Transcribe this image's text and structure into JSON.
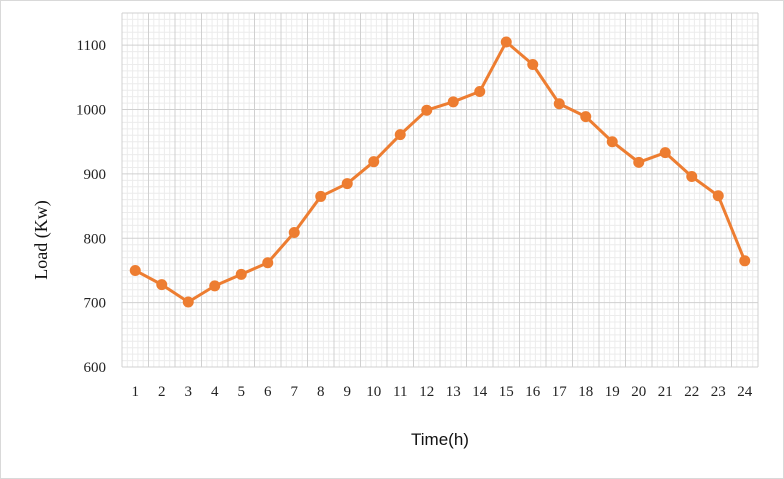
{
  "chart_data": {
    "type": "line",
    "xlabel": "Time(h)",
    "ylabel": "Load (Kw)",
    "categories": [
      "1",
      "2",
      "3",
      "4",
      "5",
      "6",
      "7",
      "8",
      "9",
      "10",
      "11",
      "12",
      "13",
      "14",
      "15",
      "16",
      "17",
      "18",
      "19",
      "20",
      "21",
      "22",
      "23",
      "24"
    ],
    "series": [
      {
        "values": [
          750,
          728,
          701,
          726,
          744,
          762,
          809,
          865,
          885,
          919,
          961,
          999,
          1012,
          1028,
          1105,
          1070,
          1009,
          989,
          950,
          918,
          933,
          896,
          866,
          765
        ]
      }
    ],
    "ylim": [
      600,
      1150
    ],
    "yticks": [
      600,
      700,
      800,
      900,
      1000,
      1100
    ],
    "grid": true,
    "minor_grid": true,
    "legend": "none",
    "colors": {
      "line": "#ed7d31",
      "marker": "#ed7d31",
      "major_grid": "#d0d0d0",
      "minor_grid": "#ececec"
    }
  }
}
